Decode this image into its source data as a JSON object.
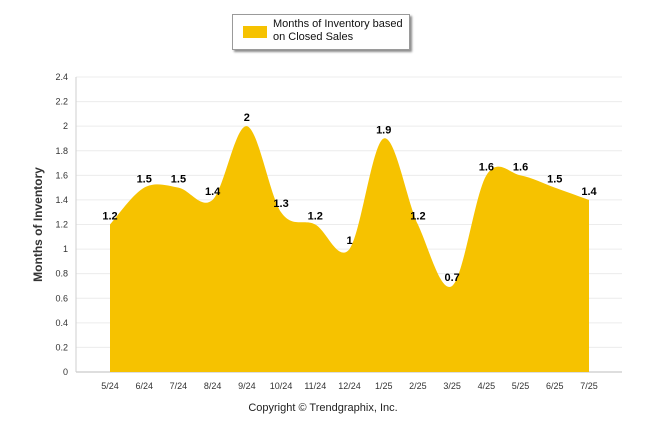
{
  "chart_data": {
    "type": "area",
    "legend": {
      "label": "Months of Inventory based on Closed Sales",
      "placement": "top-center",
      "color": "#F6C200"
    },
    "ylabel": "Months of Inventory",
    "xlabel": "",
    "ylim": [
      0,
      2.4
    ],
    "yticks": [
      "0",
      "0.2",
      "0.4",
      "0.6",
      "0.8",
      "1",
      "1.2",
      "1.4",
      "1.6",
      "1.8",
      "2",
      "2.2",
      "2.4"
    ],
    "grid": true,
    "categories": [
      "5/24",
      "6/24",
      "7/24",
      "8/24",
      "9/24",
      "10/24",
      "11/24",
      "12/24",
      "1/25",
      "2/25",
      "3/25",
      "4/25",
      "5/25",
      "6/25",
      "7/25"
    ],
    "series": [
      {
        "name": "Months of Inventory based on Closed Sales",
        "values": [
          1.2,
          1.5,
          1.5,
          1.4,
          2,
          1.3,
          1.2,
          1,
          1.9,
          1.2,
          0.7,
          1.6,
          1.6,
          1.5,
          1.4
        ],
        "labels": [
          "1.2",
          "1.5",
          "1.5",
          "1.4",
          "2",
          "1.3",
          "1.2",
          "1",
          "1.9",
          "1.2",
          "0.7",
          "1.6",
          "1.6",
          "1.5",
          "1.4"
        ]
      }
    ],
    "fill_color": "#F6C200"
  },
  "footer": {
    "copyright": "Copyright © Trendgraphix, Inc."
  }
}
